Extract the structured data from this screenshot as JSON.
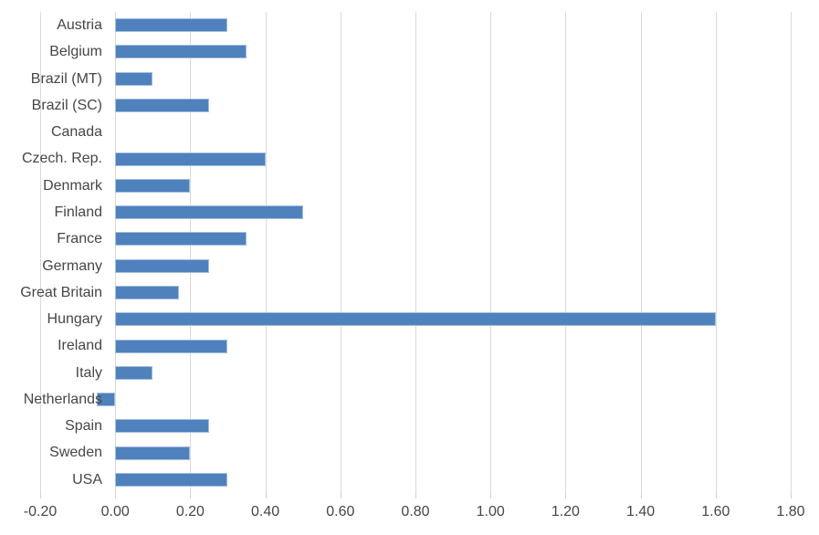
{
  "chart_data": {
    "type": "bar",
    "orientation": "horizontal",
    "title": "",
    "xlabel": "",
    "ylabel": "",
    "categories": [
      "Austria",
      "Belgium",
      "Brazil (MT)",
      "Brazil (SC)",
      "Canada",
      "Czech. Rep.",
      "Denmark",
      "Finland",
      "France",
      "Germany",
      "Great Britain",
      "Hungary",
      "Ireland",
      "Italy",
      "Netherlands",
      "Spain",
      "Sweden",
      "USA"
    ],
    "values": [
      0.3,
      0.35,
      0.1,
      0.25,
      0.0,
      0.4,
      0.2,
      0.5,
      0.35,
      0.25,
      0.17,
      1.6,
      0.3,
      0.1,
      -0.05,
      0.25,
      0.2,
      0.3
    ],
    "xlim": [
      -0.2,
      1.8
    ],
    "xticks": [
      -0.2,
      0.0,
      0.2,
      0.4,
      0.6,
      0.8,
      1.0,
      1.2,
      1.4,
      1.6,
      1.8
    ],
    "xtick_labels": [
      "-0.20",
      "0.00",
      "0.20",
      "0.40",
      "0.60",
      "0.80",
      "1.00",
      "1.20",
      "1.40",
      "1.60",
      "1.80"
    ],
    "grid": true,
    "legend": false,
    "colors": {
      "bar_fill": "#4f81bd",
      "bar_border": "#a3bedd",
      "gridline": "#d9d9d9",
      "text": "#464646",
      "background": "#ffffff"
    }
  }
}
